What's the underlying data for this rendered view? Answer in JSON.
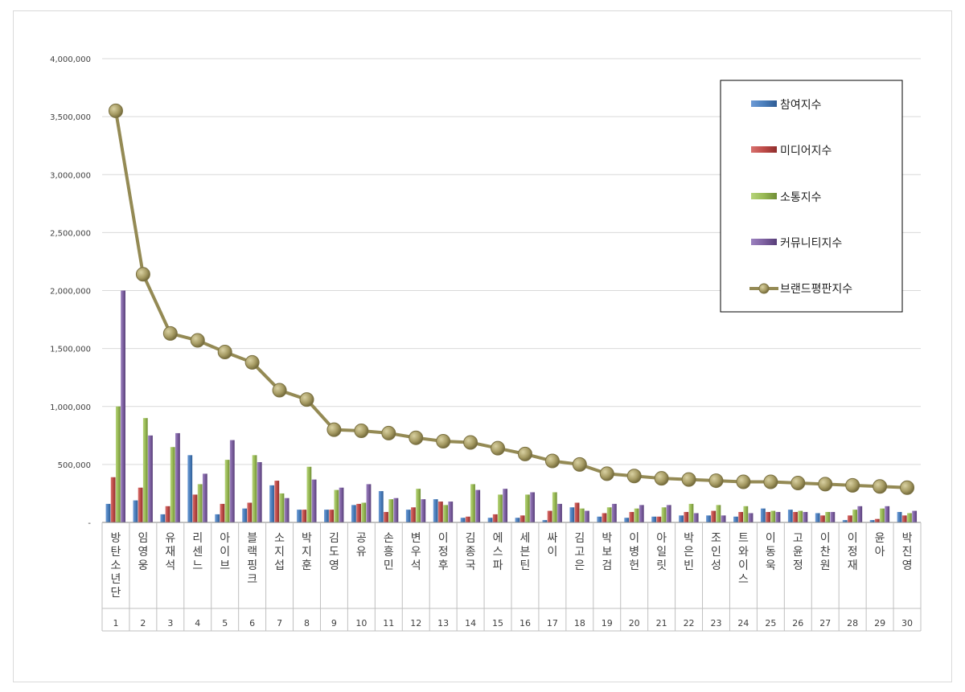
{
  "chart_data": {
    "type": "bar",
    "categories": [
      "방탄소년단",
      "임영웅",
      "유재석",
      "리센느",
      "아이브",
      "블랙핑크",
      "소지섭",
      "박지훈",
      "김도영",
      "공유",
      "손흥민",
      "변우석",
      "이정후",
      "김종국",
      "에스파",
      "세븐틴",
      "싸이",
      "김고은",
      "박보검",
      "이병헌",
      "아일릿",
      "박은빈",
      "조인성",
      "트와이스",
      "이동욱",
      "고윤정",
      "이찬원",
      "이정재",
      "윤아",
      "박진영"
    ],
    "ranks": [
      "1",
      "2",
      "3",
      "4",
      "5",
      "6",
      "7",
      "8",
      "9",
      "10",
      "11",
      "12",
      "13",
      "14",
      "15",
      "16",
      "17",
      "18",
      "19",
      "20",
      "21",
      "22",
      "23",
      "24",
      "25",
      "26",
      "27",
      "28",
      "29",
      "30"
    ],
    "ylim": [
      0,
      4000000
    ],
    "yticks": [
      0,
      500000,
      1000000,
      1500000,
      2000000,
      2500000,
      3000000,
      3500000,
      4000000
    ],
    "ytick_labels": [
      "-",
      "500,000",
      "1,000,000",
      "1,500,000",
      "2,000,000",
      "2,500,000",
      "3,000,000",
      "3,500,000",
      "4,000,000"
    ],
    "grid": true,
    "legend_position": "top-right",
    "series": [
      {
        "name": "참여지수",
        "kind": "bar",
        "color": "#4a7ebb",
        "values": [
          160000,
          190000,
          70000,
          580000,
          70000,
          120000,
          320000,
          110000,
          110000,
          150000,
          270000,
          110000,
          200000,
          40000,
          40000,
          40000,
          20000,
          130000,
          50000,
          40000,
          50000,
          60000,
          60000,
          50000,
          120000,
          110000,
          80000,
          20000,
          20000,
          90000
        ]
      },
      {
        "name": "미디어지수",
        "kind": "bar",
        "color": "#be4b48",
        "values": [
          390000,
          300000,
          140000,
          240000,
          160000,
          170000,
          360000,
          110000,
          110000,
          160000,
          90000,
          130000,
          180000,
          50000,
          70000,
          60000,
          100000,
          170000,
          80000,
          90000,
          50000,
          90000,
          100000,
          90000,
          90000,
          90000,
          60000,
          60000,
          30000,
          60000
        ]
      },
      {
        "name": "소통지수",
        "kind": "bar",
        "color": "#98b954",
        "values": [
          1000000,
          900000,
          650000,
          330000,
          540000,
          580000,
          250000,
          480000,
          280000,
          170000,
          200000,
          290000,
          150000,
          330000,
          240000,
          240000,
          260000,
          120000,
          130000,
          120000,
          130000,
          160000,
          150000,
          140000,
          100000,
          100000,
          90000,
          110000,
          120000,
          80000
        ]
      },
      {
        "name": "커뮤니티지수",
        "kind": "bar",
        "color": "#7d60a0",
        "values": [
          2000000,
          750000,
          770000,
          420000,
          710000,
          520000,
          210000,
          370000,
          300000,
          330000,
          210000,
          200000,
          180000,
          280000,
          290000,
          260000,
          160000,
          100000,
          160000,
          150000,
          150000,
          80000,
          60000,
          80000,
          90000,
          90000,
          90000,
          140000,
          140000,
          100000
        ]
      },
      {
        "name": "브랜드평판지수",
        "kind": "line",
        "color": "#948a54",
        "values": [
          3550000,
          2140000,
          1630000,
          1570000,
          1470000,
          1380000,
          1140000,
          1060000,
          800000,
          790000,
          770000,
          730000,
          700000,
          690000,
          640000,
          590000,
          530000,
          500000,
          420000,
          400000,
          380000,
          370000,
          360000,
          350000,
          350000,
          340000,
          330000,
          320000,
          310000,
          300000
        ]
      }
    ]
  }
}
